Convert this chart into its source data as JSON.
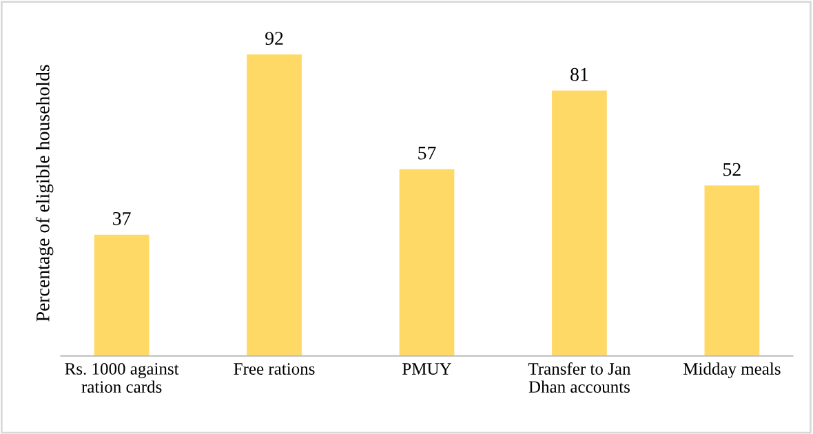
{
  "chart_data": {
    "type": "bar",
    "ylabel": "Percentage of eligible households",
    "categories": [
      "Rs. 1000 against\nration cards",
      "Free rations",
      "PMUY",
      "Transfer to Jan\nDhan accounts",
      "Midday meals"
    ],
    "values": [
      37,
      92,
      57,
      81,
      52
    ],
    "color": "#ffd966",
    "data_labels": true
  }
}
